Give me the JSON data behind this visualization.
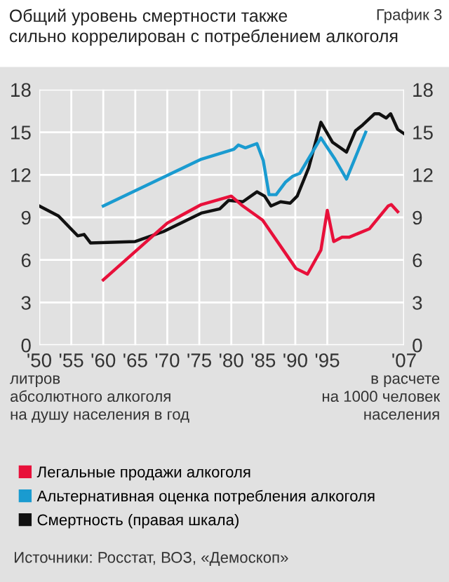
{
  "chart_data": {
    "type": "line",
    "title": "Общий уровень смертности также\nсильно коррелирован с потреблением алкоголя",
    "subtitle": "График 3",
    "series": [
      {
        "name": "Легальные продажи алкоголя",
        "color": "#e8103a",
        "x": [
          1960,
          1970,
          1975.3,
          1980,
          1981.8,
          1984.9,
          1990.1,
          1991.9,
          1994,
          1995,
          1996,
          1997.3,
          1998.4,
          2001.6,
          2004.5,
          2005,
          2006
        ],
        "values": [
          4.6,
          8.6,
          9.9,
          10.5,
          9.8,
          8.8,
          5.4,
          5.0,
          6.7,
          9.5,
          7.3,
          7.6,
          7.6,
          8.2,
          9.8,
          9.9,
          9.4
        ]
      },
      {
        "name": "Альтернативная оценка потребления алкоголя",
        "color": "#1a9bd0",
        "x": [
          1960,
          1975.3,
          1980.4,
          1981.1,
          1982.2,
          1984,
          1985,
          1985.9,
          1987,
          1988.5,
          1989.6,
          1990.7,
          1994,
          1996.2,
          1998,
          2001
        ],
        "values": [
          9.8,
          13.1,
          13.8,
          14.1,
          13.9,
          14.2,
          13.0,
          10.6,
          10.6,
          11.5,
          11.9,
          12.1,
          14.6,
          13.1,
          11.7,
          15.0
        ]
      },
      {
        "name": "Смертность (правая шкала)",
        "color": "#111111",
        "axis": "y2",
        "x": [
          1950,
          1953,
          1956,
          1957,
          1958,
          1965,
          1969.4,
          1975.3,
          1978.2,
          1979.6,
          1981.8,
          1984,
          1985.2,
          1986.2,
          1987.7,
          1989.2,
          1990.3,
          1992.1,
          1994,
          1995.8,
          1998,
          1999.4,
          2000.5,
          2002.4,
          2003.1,
          2004.2,
          2004.9,
          2006,
          2007
        ],
        "values": [
          9.8,
          9.1,
          7.7,
          7.8,
          7.2,
          7.3,
          8.0,
          9.3,
          9.6,
          10.2,
          10.1,
          10.8,
          10.5,
          9.8,
          10.1,
          10.0,
          10.5,
          12.5,
          15.7,
          14.3,
          13.6,
          15.1,
          15.5,
          16.3,
          16.3,
          16.0,
          16.3,
          15.2,
          14.9
        ]
      }
    ],
    "xlim": [
      1950,
      2007
    ],
    "xticks": [
      {
        "value": 1950,
        "label": "'50"
      },
      {
        "value": 1955,
        "label": "'55"
      },
      {
        "value": 1960,
        "label": "'60"
      },
      {
        "value": 1965,
        "label": "'65"
      },
      {
        "value": 1970,
        "label": "'70"
      },
      {
        "value": 1975,
        "label": "'75"
      },
      {
        "value": 1980,
        "label": "'80"
      },
      {
        "value": 1985,
        "label": "'85"
      },
      {
        "value": 1990,
        "label": "'90"
      },
      {
        "value": 1995,
        "label": "'95"
      },
      {
        "value": 2007,
        "label": "'07"
      }
    ],
    "ylim": [
      0,
      18
    ],
    "yticks": [
      0,
      3,
      6,
      9,
      12,
      15,
      18
    ],
    "y2lim": [
      0,
      18
    ],
    "y2ticks": [
      0,
      3,
      6,
      9,
      12,
      15,
      18
    ],
    "grid": true,
    "legend": "bottom",
    "marker": "none",
    "line_style": "solid",
    "annotations": [
      "литров\nабсолютного алкоголя\nна душу населения в год",
      "в расчете\nна 1000 человек\nнаселения",
      "Источники: Росстат, ВОЗ, «Демоскоп»"
    ]
  }
}
